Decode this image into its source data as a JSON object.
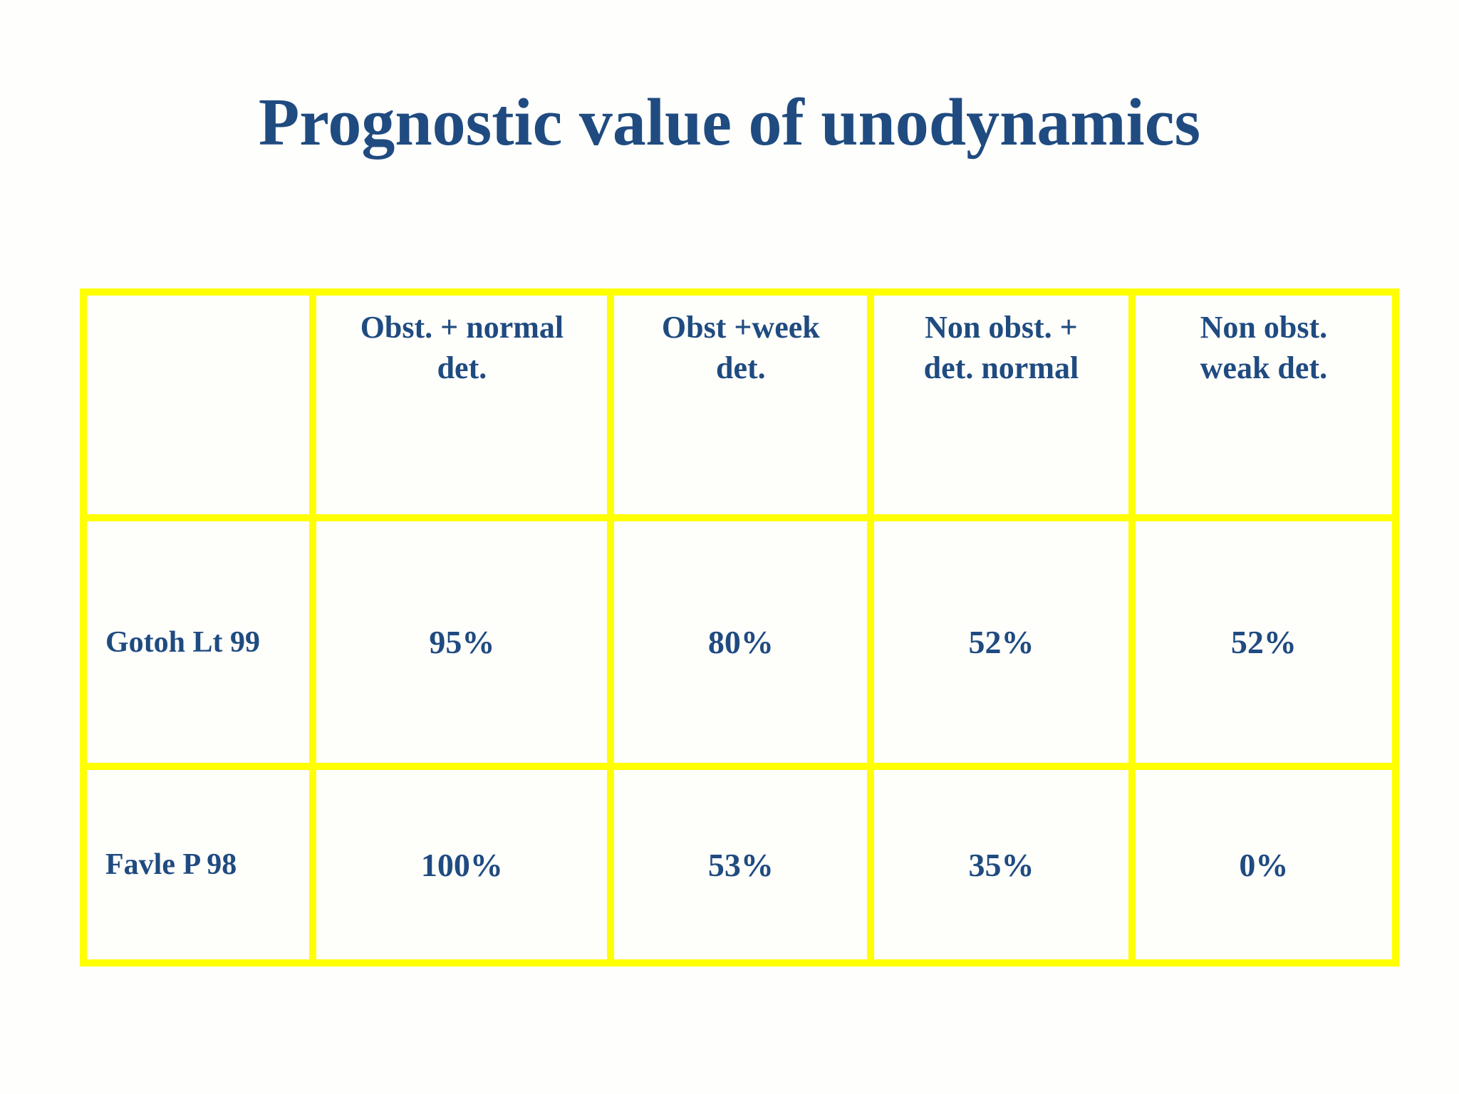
{
  "page": {
    "title": "Prognostic value of unodynamics"
  },
  "colors": {
    "title_text": "#1f4b80",
    "table_text": "#1f4b80",
    "table_border": "#ffff00",
    "background": "#fefefc",
    "cell_background": "#fefefb"
  },
  "table": {
    "columns": [
      {
        "line1": "",
        "line2": ""
      },
      {
        "line1": "Obst. + normal",
        "line2": "det."
      },
      {
        "line1": "Obst +week",
        "line2": "det."
      },
      {
        "line1": "Non obst. +",
        "line2": "det. normal"
      },
      {
        "line1": "Non obst.",
        "line2": "weak det."
      }
    ],
    "rows": [
      {
        "label": "Gotoh Lt 99",
        "values": [
          "95%",
          "80%",
          "52%",
          "52%"
        ]
      },
      {
        "label": "Favle P 98",
        "values": [
          "100%",
          "53%",
          "35%",
          "0%"
        ]
      }
    ]
  }
}
